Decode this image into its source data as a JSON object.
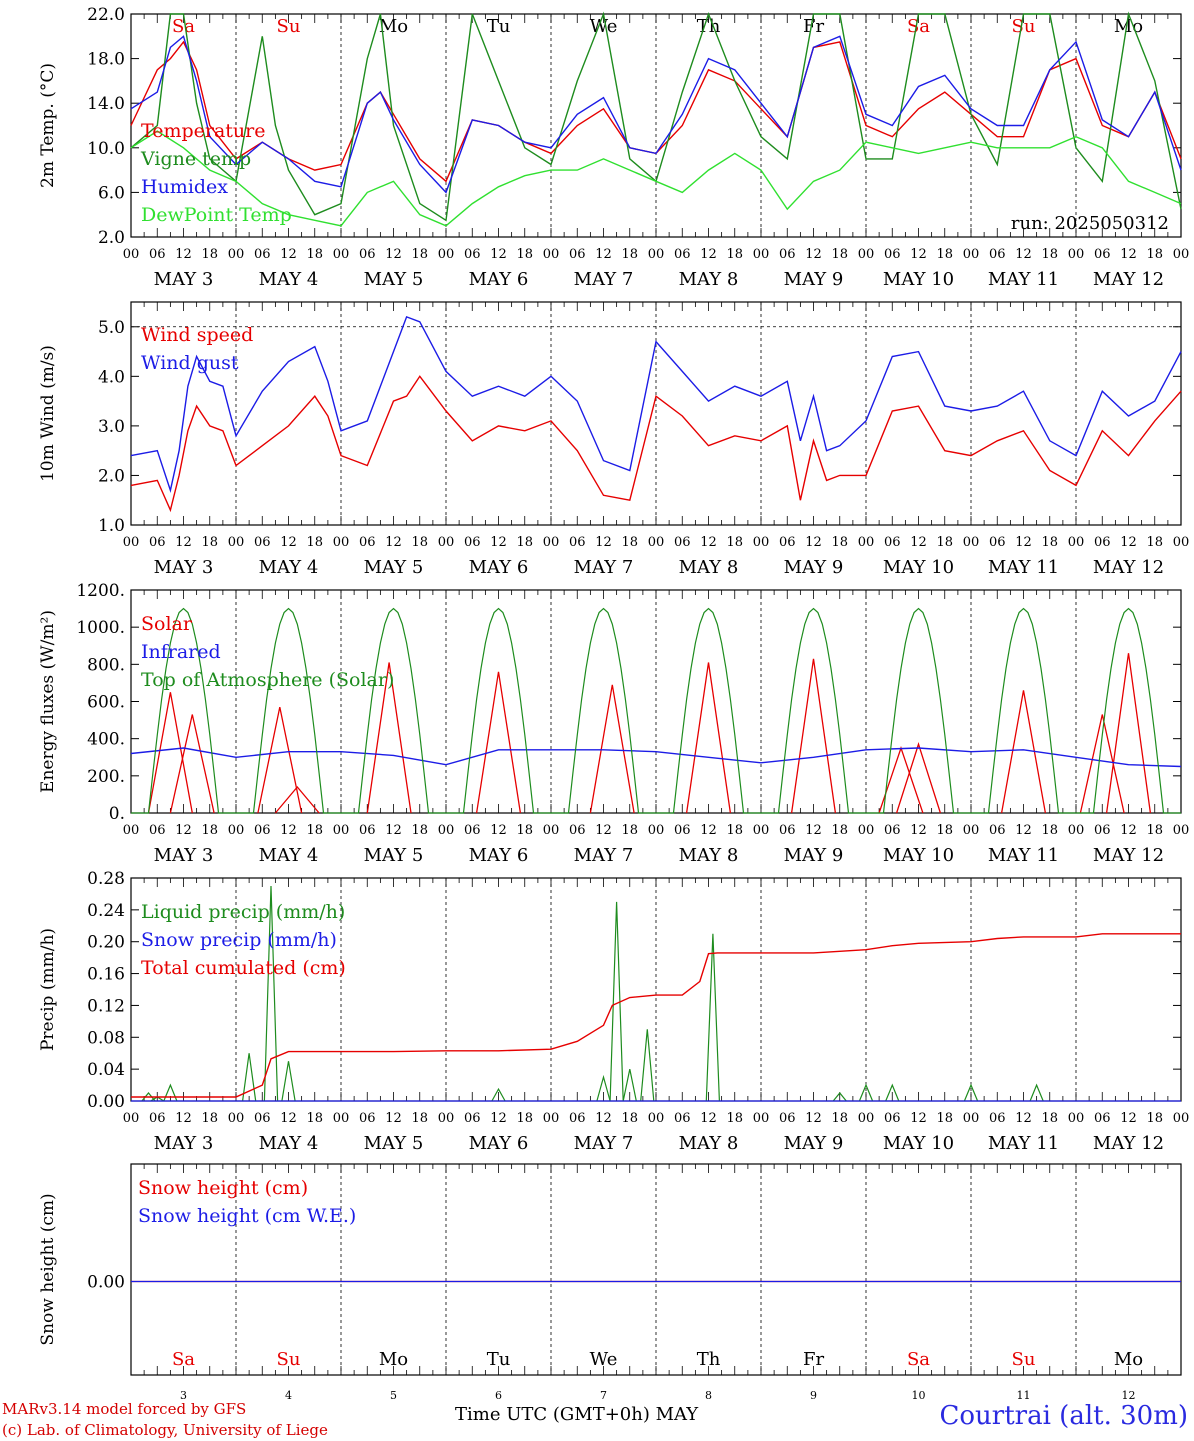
{
  "days": {
    "weekday": [
      "Sa",
      "Su",
      "Mo",
      "Tu",
      "We",
      "Th",
      "Fr",
      "Sa",
      "Su",
      "Mo"
    ],
    "day_number": [
      "3",
      "4",
      "5",
      "6",
      "7",
      "8",
      "9",
      "10",
      "11",
      "12"
    ],
    "date_label": [
      "MAY  3",
      "MAY  4",
      "MAY  5",
      "MAY  6",
      "MAY  7",
      "MAY  8",
      "MAY  9",
      "MAY 10",
      "MAY 11",
      "MAY 12"
    ],
    "weekend": [
      true,
      true,
      false,
      false,
      false,
      false,
      false,
      true,
      true,
      false
    ],
    "hour_ticks": [
      "00",
      "06",
      "12",
      "18"
    ],
    "final_tick": "00"
  },
  "colors": {
    "red": "#e60000",
    "green": "#1e8c1e",
    "blue": "#1c1ce6",
    "lightgreen": "#30e030",
    "weekend": "#e60000"
  },
  "run_label": "run: 2025050312",
  "footer": {
    "xtitle": "Time UTC (GMT+0h)",
    "month": "MAY",
    "model": "MARv3.14 model forced by GFS",
    "lab": "(c) Lab. of Climatology, University of Liege",
    "station": "Courtrai (alt. 30m)"
  },
  "chart_data": [
    {
      "type": "line",
      "ylabel": "2m Temp. (°C)",
      "ylim": [
        2,
        22
      ],
      "yticks": [
        "2.0",
        "6.0",
        "10.0",
        "14.0",
        "18.0",
        "22.0"
      ],
      "x_unit": "hours from MAY 3 00 UTC",
      "series": [
        {
          "name": "Temperature",
          "color": "red",
          "x": [
            0,
            6,
            9,
            12,
            15,
            18,
            24,
            30,
            36,
            42,
            48,
            54,
            57,
            60,
            66,
            72,
            78,
            84,
            90,
            96,
            102,
            108,
            114,
            120,
            126,
            132,
            138,
            144,
            150,
            156,
            162,
            168,
            174,
            180,
            186,
            192,
            198,
            204,
            210,
            216,
            222,
            228,
            234,
            240
          ],
          "values": [
            12,
            17,
            18,
            19.5,
            17,
            12,
            9,
            10.5,
            9,
            8,
            8.5,
            14,
            15,
            13,
            9,
            7,
            12.5,
            12,
            10.5,
            9.5,
            12,
            13.5,
            10,
            9.5,
            12,
            17,
            16,
            13.5,
            11,
            19,
            19.5,
            12,
            11,
            13.5,
            15,
            13,
            11,
            11,
            17,
            18,
            12,
            11,
            15,
            9
          ]
        },
        {
          "name": "Vigne temp",
          "color": "green",
          "x": [
            0,
            6,
            9,
            12,
            15,
            18,
            24,
            30,
            33,
            36,
            42,
            48,
            54,
            57,
            60,
            66,
            72,
            78,
            84,
            90,
            96,
            102,
            108,
            114,
            120,
            126,
            132,
            138,
            144,
            150,
            156,
            162,
            168,
            174,
            180,
            186,
            192,
            198,
            204,
            210,
            216,
            222,
            228,
            234,
            240
          ],
          "values": [
            10,
            12,
            22,
            22,
            14,
            9,
            7,
            20,
            12,
            8,
            4,
            5,
            18,
            22,
            12,
            5,
            3.5,
            22,
            16,
            10,
            8.5,
            16,
            22,
            9,
            7,
            15,
            22,
            16,
            11,
            9,
            22,
            22,
            9,
            9,
            22,
            22,
            13,
            8.5,
            22,
            22,
            10,
            7,
            22,
            16,
            4.5
          ]
        },
        {
          "name": "Humidex",
          "color": "blue",
          "x": [
            0,
            6,
            9,
            12,
            15,
            18,
            24,
            30,
            36,
            42,
            48,
            54,
            57,
            60,
            66,
            72,
            78,
            84,
            90,
            96,
            102,
            108,
            114,
            120,
            126,
            132,
            138,
            144,
            150,
            156,
            162,
            168,
            174,
            180,
            186,
            192,
            198,
            204,
            210,
            216,
            222,
            228,
            234,
            240
          ],
          "values": [
            13.5,
            15,
            19,
            20,
            16,
            11,
            8.5,
            10.5,
            9,
            7,
            6.5,
            14,
            15,
            12.5,
            8.5,
            6,
            12.5,
            12,
            10.5,
            10,
            13,
            14.5,
            10,
            9.5,
            13,
            18,
            17,
            14,
            11,
            19,
            20,
            13,
            12,
            15.5,
            16.5,
            13.5,
            12,
            12,
            17,
            19.5,
            12.5,
            11,
            15,
            8
          ]
        },
        {
          "name": "DewPoint Temp",
          "color": "lightgreen",
          "x": [
            0,
            6,
            12,
            18,
            24,
            30,
            36,
            42,
            48,
            54,
            60,
            66,
            72,
            78,
            84,
            90,
            96,
            102,
            108,
            114,
            120,
            126,
            132,
            138,
            144,
            150,
            156,
            162,
            168,
            174,
            180,
            186,
            192,
            198,
            204,
            210,
            216,
            222,
            228,
            234,
            240
          ],
          "values": [
            10,
            11.5,
            10,
            8,
            7,
            5,
            4,
            3.5,
            3,
            6,
            7,
            4,
            3,
            5,
            6.5,
            7.5,
            8,
            8,
            9,
            8,
            7,
            6,
            8,
            9.5,
            8,
            4.5,
            7,
            8,
            10.5,
            10,
            9.5,
            10,
            10.5,
            10,
            10,
            10,
            11,
            10,
            7,
            6,
            5
          ]
        }
      ]
    },
    {
      "type": "line",
      "ylabel": "10m Wind (m/s)",
      "ylim": [
        1,
        5.5
      ],
      "yticks": [
        "1.0",
        "2.0",
        "3.0",
        "4.0",
        "5.0"
      ],
      "reference_line": 5.0,
      "series": [
        {
          "name": "Wind speed",
          "color": "red",
          "x": [
            0,
            6,
            9,
            11,
            13,
            15,
            18,
            21,
            24,
            30,
            36,
            42,
            45,
            48,
            54,
            60,
            63,
            66,
            72,
            78,
            84,
            90,
            96,
            102,
            108,
            114,
            120,
            126,
            132,
            138,
            144,
            150,
            153,
            156,
            159,
            162,
            168,
            174,
            180,
            186,
            192,
            198,
            204,
            210,
            216,
            222,
            228,
            234,
            240
          ],
          "values": [
            1.8,
            1.9,
            1.3,
            2,
            2.9,
            3.4,
            3,
            2.9,
            2.2,
            2.6,
            3,
            3.6,
            3.2,
            2.4,
            2.2,
            3.5,
            3.6,
            4.0,
            3.3,
            2.7,
            3,
            2.9,
            3.1,
            2.5,
            1.6,
            1.5,
            3.6,
            3.2,
            2.6,
            2.8,
            2.7,
            3.0,
            1.5,
            2.7,
            1.9,
            2.0,
            2.0,
            3.3,
            3.4,
            2.5,
            2.4,
            2.7,
            2.9,
            2.1,
            1.8,
            2.9,
            2.4,
            3.1,
            3.7
          ]
        },
        {
          "name": "Wind gust",
          "color": "blue",
          "x": [
            0,
            6,
            9,
            11,
            13,
            15,
            18,
            21,
            24,
            30,
            36,
            42,
            45,
            48,
            54,
            60,
            63,
            66,
            72,
            78,
            84,
            90,
            96,
            102,
            108,
            114,
            120,
            126,
            132,
            138,
            144,
            150,
            153,
            156,
            159,
            162,
            168,
            174,
            180,
            186,
            192,
            198,
            204,
            210,
            216,
            222,
            228,
            234,
            240
          ],
          "values": [
            2.4,
            2.5,
            1.7,
            2.5,
            3.8,
            4.4,
            3.9,
            3.8,
            2.8,
            3.7,
            4.3,
            4.6,
            3.9,
            2.9,
            3.1,
            4.5,
            5.2,
            5.1,
            4.1,
            3.6,
            3.8,
            3.6,
            4,
            3.5,
            2.3,
            2.1,
            4.7,
            4.1,
            3.5,
            3.8,
            3.6,
            3.9,
            2.7,
            3.6,
            2.5,
            2.6,
            3.1,
            4.4,
            4.5,
            3.4,
            3.3,
            3.4,
            3.7,
            2.7,
            2.4,
            3.7,
            3.2,
            3.5,
            4.5
          ]
        }
      ]
    },
    {
      "type": "line",
      "ylabel": "Energy fluxes (W/m²)",
      "ylim": [
        0,
        1200
      ],
      "yticks": [
        "0.",
        "200.",
        "400.",
        "600.",
        "800.",
        "1000.",
        "1200."
      ],
      "series": [
        {
          "name": "Solar",
          "color": "red",
          "peaks": [
            [
              9,
              650
            ],
            [
              14,
              530
            ],
            [
              34,
              570
            ],
            [
              38,
              140
            ],
            [
              59,
              810
            ],
            [
              84,
              760
            ],
            [
              110,
              690
            ],
            [
              132,
              810
            ],
            [
              156,
              830
            ],
            [
              176,
              350
            ],
            [
              180,
              370
            ],
            [
              204,
              660
            ],
            [
              222,
              530
            ],
            [
              228,
              860
            ]
          ]
        },
        {
          "name": "Infrared",
          "color": "blue",
          "x": [
            0,
            12,
            24,
            36,
            48,
            60,
            72,
            84,
            96,
            108,
            120,
            132,
            144,
            156,
            168,
            180,
            192,
            204,
            216,
            228,
            240
          ],
          "values": [
            320,
            350,
            300,
            330,
            330,
            310,
            260,
            340,
            340,
            340,
            330,
            300,
            270,
            300,
            340,
            350,
            330,
            340,
            300,
            260,
            250
          ]
        },
        {
          "name": "Top of Atmosphere (Solar)",
          "color": "green",
          "peak": 1100,
          "sunrise_h": 4,
          "sunset_h": 20
        }
      ]
    },
    {
      "type": "line",
      "ylabel": "Precip (mm/h)",
      "ylim": [
        0,
        0.28
      ],
      "yticks": [
        "0.00",
        "0.04",
        "0.08",
        "0.12",
        "0.16",
        "0.20",
        "0.24",
        "0.28"
      ],
      "series": [
        {
          "name": "Liquid precip (mm/h)",
          "color": "green",
          "spikes": [
            [
              4,
              0.01
            ],
            [
              6,
              0.005
            ],
            [
              9,
              0.02
            ],
            [
              27,
              0.06
            ],
            [
              32,
              0.27
            ],
            [
              36,
              0.05
            ],
            [
              84,
              0.015
            ],
            [
              108,
              0.03
            ],
            [
              111,
              0.25
            ],
            [
              114,
              0.04
            ],
            [
              118,
              0.09
            ],
            [
              133,
              0.21
            ],
            [
              162,
              0.01
            ],
            [
              168,
              0.02
            ],
            [
              174,
              0.02
            ],
            [
              192,
              0.02
            ],
            [
              207,
              0.02
            ]
          ]
        },
        {
          "name": "Snow precip (mm/h)",
          "color": "blue",
          "values": [
            0
          ]
        },
        {
          "name": "Total cumulated (cm)",
          "color": "red",
          "x": [
            0,
            24,
            28,
            30,
            32,
            36,
            48,
            60,
            72,
            84,
            96,
            102,
            108,
            110,
            114,
            120,
            126,
            130,
            132,
            134,
            144,
            156,
            168,
            174,
            180,
            192,
            198,
            204,
            216,
            222,
            240
          ],
          "values": [
            0.005,
            0.005,
            0.015,
            0.02,
            0.053,
            0.062,
            0.062,
            0.062,
            0.063,
            0.063,
            0.065,
            0.075,
            0.095,
            0.12,
            0.13,
            0.133,
            0.133,
            0.15,
            0.185,
            0.186,
            0.186,
            0.186,
            0.19,
            0.195,
            0.198,
            0.2,
            0.204,
            0.206,
            0.206,
            0.21,
            0.21
          ]
        }
      ]
    },
    {
      "type": "line",
      "ylabel": "Snow height (cm)",
      "yticks": [
        "0.00"
      ],
      "series": [
        {
          "name": "Snow height (cm)",
          "color": "red",
          "values": [
            0
          ]
        },
        {
          "name": "Snow height (cm W.E.)",
          "color": "blue",
          "values": [
            0
          ]
        }
      ]
    }
  ]
}
